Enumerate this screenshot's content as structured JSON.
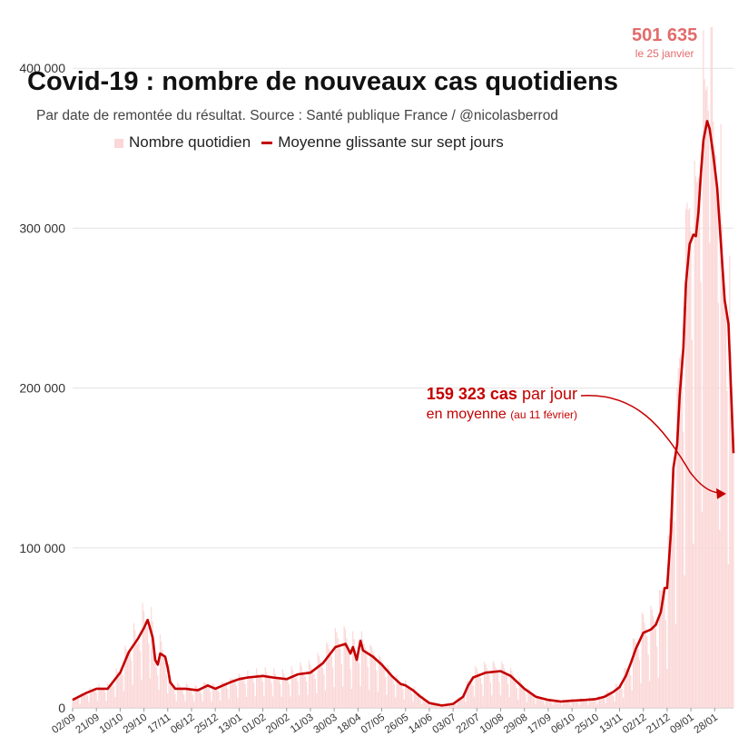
{
  "title": "Covid-19 : nombre de nouveaux cas quotidiens",
  "subtitle": "Par date de remontée du résultat. Source : Santé publique France / @nicolasberrod",
  "legend": {
    "daily": "Nombre quotidien",
    "average": "Moyenne glissante sur sept jours"
  },
  "peak": {
    "value": "501 635",
    "date": "le 25 janvier"
  },
  "annotation": {
    "value": "159 323 cas",
    "text1": " par jour",
    "text2": "en moyenne",
    "text3": "(au 11 février)"
  },
  "colors": {
    "daily": "#fbd7d7",
    "average": "#c40000",
    "peak": "#e36b6b",
    "grid": "#e3e3e3"
  },
  "chart_data": {
    "type": "bar+line",
    "title": "Covid-19 : nombre de nouveaux cas quotidiens",
    "ylim": [
      0,
      420000
    ],
    "yticks": [
      0,
      100000,
      200000,
      300000,
      400000
    ],
    "ytick_labels": [
      "0",
      "100 000",
      "200 000",
      "300 000",
      "400 000"
    ],
    "x_range_days": [
      0,
      528
    ],
    "xticks": [
      {
        "label": "02/09",
        "day": 0
      },
      {
        "label": "21/09",
        "day": 19
      },
      {
        "label": "10/10",
        "day": 38
      },
      {
        "label": "29/10",
        "day": 57
      },
      {
        "label": "17/11",
        "day": 76
      },
      {
        "label": "06/12",
        "day": 95
      },
      {
        "label": "25/12",
        "day": 114
      },
      {
        "label": "13/01",
        "day": 133
      },
      {
        "label": "01/02",
        "day": 152
      },
      {
        "label": "20/02",
        "day": 171
      },
      {
        "label": "11/03",
        "day": 190
      },
      {
        "label": "30/03",
        "day": 209
      },
      {
        "label": "18/04",
        "day": 228
      },
      {
        "label": "07/05",
        "day": 247
      },
      {
        "label": "26/05",
        "day": 266
      },
      {
        "label": "14/06",
        "day": 285
      },
      {
        "label": "03/07",
        "day": 304
      },
      {
        "label": "22/07",
        "day": 323
      },
      {
        "label": "10/08",
        "day": 342
      },
      {
        "label": "29/08",
        "day": 361
      },
      {
        "label": "17/09",
        "day": 380
      },
      {
        "label": "06/10",
        "day": 399
      },
      {
        "label": "25/10",
        "day": 418
      },
      {
        "label": "13/11",
        "day": 437
      },
      {
        "label": "02/12",
        "day": 456
      },
      {
        "label": "21/12",
        "day": 475
      },
      {
        "label": "09/01",
        "day": 494
      },
      {
        "label": "28/01",
        "day": 513
      }
    ],
    "series": [
      {
        "name": "Moyenne glissante sur sept jours",
        "kind": "line",
        "points": [
          [
            0,
            5000
          ],
          [
            10,
            9000
          ],
          [
            19,
            12000
          ],
          [
            28,
            12000
          ],
          [
            38,
            22000
          ],
          [
            45,
            35000
          ],
          [
            52,
            43000
          ],
          [
            57,
            50000
          ],
          [
            60,
            55000
          ],
          [
            64,
            44000
          ],
          [
            66,
            30000
          ],
          [
            68,
            27000
          ],
          [
            70,
            34000
          ],
          [
            74,
            32000
          ],
          [
            76,
            25000
          ],
          [
            78,
            16000
          ],
          [
            82,
            12000
          ],
          [
            90,
            12000
          ],
          [
            100,
            11000
          ],
          [
            108,
            14000
          ],
          [
            114,
            12000
          ],
          [
            120,
            14000
          ],
          [
            126,
            16000
          ],
          [
            133,
            18000
          ],
          [
            140,
            19000
          ],
          [
            152,
            20000
          ],
          [
            160,
            19000
          ],
          [
            171,
            18000
          ],
          [
            180,
            21000
          ],
          [
            190,
            22000
          ],
          [
            200,
            28000
          ],
          [
            206,
            34000
          ],
          [
            210,
            38000
          ],
          [
            214,
            39000
          ],
          [
            218,
            40000
          ],
          [
            222,
            34000
          ],
          [
            224,
            38000
          ],
          [
            227,
            30000
          ],
          [
            230,
            42000
          ],
          [
            232,
            36000
          ],
          [
            240,
            32000
          ],
          [
            247,
            27000
          ],
          [
            255,
            20000
          ],
          [
            262,
            15000
          ],
          [
            266,
            14000
          ],
          [
            272,
            11000
          ],
          [
            278,
            7000
          ],
          [
            285,
            3000
          ],
          [
            295,
            1500
          ],
          [
            304,
            2500
          ],
          [
            312,
            7000
          ],
          [
            316,
            14000
          ],
          [
            320,
            19000
          ],
          [
            330,
            22000
          ],
          [
            342,
            23000
          ],
          [
            350,
            20000
          ],
          [
            361,
            12000
          ],
          [
            370,
            7000
          ],
          [
            380,
            5000
          ],
          [
            390,
            4000
          ],
          [
            399,
            4500
          ],
          [
            410,
            5000
          ],
          [
            418,
            5500
          ],
          [
            425,
            7000
          ],
          [
            432,
            10000
          ],
          [
            437,
            13000
          ],
          [
            442,
            20000
          ],
          [
            446,
            28000
          ],
          [
            450,
            37000
          ],
          [
            456,
            47000
          ],
          [
            462,
            49000
          ],
          [
            466,
            52000
          ],
          [
            470,
            60000
          ],
          [
            473,
            75000
          ],
          [
            475,
            75000
          ],
          [
            478,
            110000
          ],
          [
            480,
            150000
          ],
          [
            483,
            165000
          ],
          [
            485,
            195000
          ],
          [
            488,
            225000
          ],
          [
            490,
            265000
          ],
          [
            493,
            290000
          ],
          [
            496,
            296000
          ],
          [
            498,
            295000
          ],
          [
            500,
            310000
          ],
          [
            502,
            335000
          ],
          [
            504,
            355000
          ],
          [
            507,
            367000
          ],
          [
            509,
            362000
          ],
          [
            512,
            345000
          ],
          [
            515,
            325000
          ],
          [
            518,
            290000
          ],
          [
            521,
            255000
          ],
          [
            524,
            240000
          ],
          [
            528,
            159323
          ]
        ]
      },
      {
        "name": "Nombre quotidien",
        "kind": "bar",
        "note": "daily values estimated from the averaged curve with weekly pattern; peak 501 635 on 25 January"
      }
    ]
  }
}
